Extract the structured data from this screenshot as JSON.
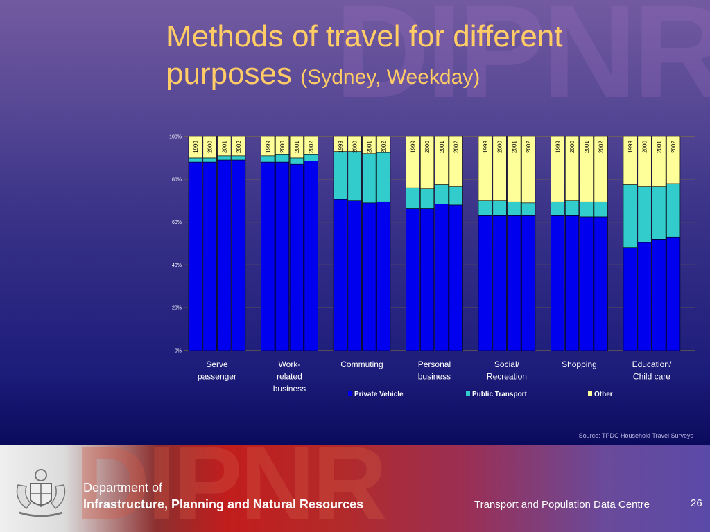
{
  "slide": {
    "watermark": "DIPNR",
    "title_main": "Methods of travel for different purposes",
    "title_sub": "(Sydney, Weekday)",
    "source": "Source: TPDC Household Travel Surveys"
  },
  "footer": {
    "department_line1": "Department of",
    "department_line2": "Infrastructure, Planning and Natural Resources",
    "centre": "Transport and Population Data Centre",
    "page_number": "26"
  },
  "colors": {
    "private_vehicle": "#0000ee",
    "public_transport": "#33cccc",
    "other": "#ffff99",
    "gridline": "#8a7a2e",
    "title": "#ffcc66"
  },
  "chart_data": {
    "type": "bar",
    "stacked": true,
    "title": "",
    "xlabel": "",
    "ylabel": "",
    "ylim": [
      0,
      100
    ],
    "y_ticks": [
      "0%",
      "20%",
      "40%",
      "60%",
      "80%",
      "100%"
    ],
    "grid": true,
    "legend_position": "bottom",
    "years": [
      "1999",
      "2000",
      "2001",
      "2002"
    ],
    "categories": [
      {
        "label_lines": [
          "Serve",
          "passenger"
        ]
      },
      {
        "label_lines": [
          "Work-",
          "related",
          "business"
        ]
      },
      {
        "label_lines": [
          "Commuting"
        ]
      },
      {
        "label_lines": [
          "Personal",
          "business"
        ]
      },
      {
        "label_lines": [
          "Social/",
          "Recreation"
        ]
      },
      {
        "label_lines": [
          "Shopping"
        ]
      },
      {
        "label_lines": [
          "Education/",
          "Child care"
        ]
      }
    ],
    "series": [
      {
        "name": "Private Vehicle",
        "values": [
          [
            88,
            88,
            89,
            89
          ],
          [
            88,
            88,
            87,
            88.5
          ],
          [
            70.5,
            70,
            69,
            69.5
          ],
          [
            66.5,
            66.5,
            68.5,
            68
          ],
          [
            63,
            63,
            63,
            63
          ],
          [
            63,
            63,
            62.5,
            62.5
          ],
          [
            48,
            50.5,
            52,
            53
          ]
        ]
      },
      {
        "name": "Public Transport",
        "values": [
          [
            2,
            2,
            2,
            2
          ],
          [
            3,
            3.5,
            3,
            3
          ],
          [
            22.5,
            23,
            23,
            23
          ],
          [
            9.5,
            9,
            9,
            8.5
          ],
          [
            7,
            7,
            6.5,
            6
          ],
          [
            6.5,
            7,
            7,
            7
          ],
          [
            29.5,
            26,
            24.5,
            25
          ]
        ]
      },
      {
        "name": "Other",
        "values": [
          [
            10,
            10,
            9,
            9
          ],
          [
            9,
            8.5,
            10,
            8.5
          ],
          [
            7,
            7,
            8,
            7.5
          ],
          [
            24,
            24.5,
            22.5,
            23.5
          ],
          [
            30,
            30,
            30.5,
            31
          ],
          [
            30.5,
            30,
            30.5,
            30.5
          ],
          [
            22.5,
            23.5,
            23.5,
            22
          ]
        ]
      }
    ]
  }
}
